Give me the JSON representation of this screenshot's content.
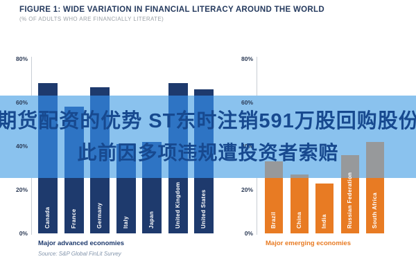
{
  "figure": {
    "title": "FIGURE 1: WIDE VARIATION IN FINANCIAL LITERACY AROUND THE WORLD",
    "subtitle": "(% OF ADULTS WHO ARE FINANCIALLY LITERATE)",
    "source": "Source: S&P Global FinLit Survey"
  },
  "overlay": {
    "line1": "期货配资的优势 ST东时注销591万股回购股份",
    "line2": "此前因多项违规遭投资者索赔",
    "bg_color": "#8ac2ee",
    "text_color": "#17498f"
  },
  "chart_data": [
    {
      "type": "bar",
      "title": "Major advanced economies",
      "categories": [
        "Canada",
        "France",
        "Germany",
        "Italy",
        "Japan",
        "United Kingdom",
        "United States"
      ],
      "values": [
        69,
        58,
        67,
        41,
        42,
        69,
        66
      ],
      "unit": "%",
      "ylim": [
        0,
        80
      ],
      "yticks": [
        80,
        60,
        40,
        20,
        0
      ],
      "ytick_suffix": "%",
      "grid": false,
      "bar_color": "#1e3a6d",
      "bar_color_under_overlay": "#2e74c4",
      "caption_color": "#1e3a6d"
    },
    {
      "type": "bar",
      "title": "Major emerging economies",
      "categories": [
        "Brazil",
        "China",
        "India",
        "Russian Federation",
        "South Africa"
      ],
      "values": [
        33,
        27,
        23,
        36,
        42
      ],
      "unit": "%",
      "ylim": [
        0,
        80
      ],
      "yticks": [
        80,
        60,
        40,
        20,
        0
      ],
      "ytick_suffix": "%",
      "grid": false,
      "bar_color": "#e87b23",
      "bar_color_under_overlay": "#97999b",
      "caption_color": "#e87b23"
    }
  ]
}
